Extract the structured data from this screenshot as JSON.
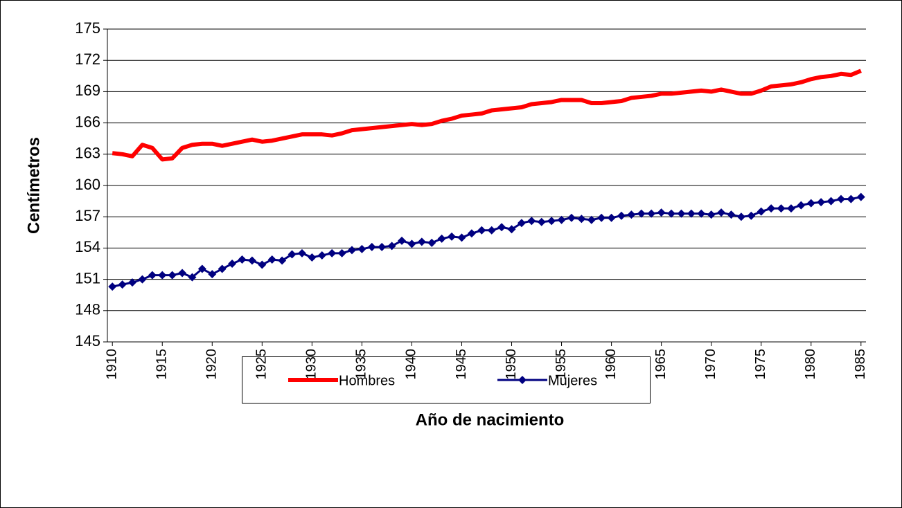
{
  "chart_data": {
    "type": "line",
    "x_label": "Año de nacimiento",
    "y_label": "Centímetros",
    "categories": [
      "1910",
      null,
      null,
      null,
      null,
      "1915",
      null,
      null,
      null,
      null,
      "1920",
      null,
      null,
      null,
      null,
      "1925",
      null,
      null,
      null,
      null,
      "1930",
      null,
      null,
      null,
      null,
      "1935",
      null,
      null,
      null,
      null,
      "1940",
      null,
      null,
      null,
      null,
      "1945",
      null,
      null,
      null,
      null,
      "1950",
      null,
      null,
      null,
      null,
      "1955",
      null,
      null,
      null,
      null,
      "1960",
      null,
      null,
      null,
      null,
      "1965",
      null,
      null,
      null,
      null,
      "1970",
      null,
      null,
      null,
      null,
      "1975",
      null,
      null,
      null,
      null,
      "1980",
      null,
      null,
      null,
      null,
      "1985"
    ],
    "series": [
      {
        "name": "Hombres",
        "color": "#ff0000",
        "values": [
          163.1,
          163.0,
          162.8,
          163.9,
          163.6,
          162.5,
          162.6,
          163.6,
          163.9,
          164.0,
          164.0,
          163.8,
          164.0,
          164.2,
          164.4,
          164.2,
          164.3,
          164.5,
          164.7,
          164.9,
          164.9,
          164.9,
          164.8,
          165.0,
          165.3,
          165.4,
          165.5,
          165.6,
          165.7,
          165.8,
          165.9,
          165.8,
          165.9,
          166.2,
          166.4,
          166.7,
          166.8,
          166.9,
          167.2,
          167.3,
          167.4,
          167.5,
          167.8,
          167.9,
          168.0,
          168.2,
          168.2,
          168.2,
          167.9,
          167.9,
          168.0,
          168.1,
          168.4,
          168.5,
          168.6,
          168.8,
          168.8,
          168.9,
          169.0,
          169.1,
          169.0,
          169.2,
          169.0,
          168.8,
          168.8,
          169.1,
          169.5,
          169.6,
          169.7,
          169.9,
          170.2,
          170.4,
          170.5,
          170.7,
          170.6,
          171.0
        ]
      },
      {
        "name": "Mujeres",
        "color": "#000080",
        "marker": "diamond",
        "values": [
          150.3,
          150.5,
          150.7,
          151.0,
          151.4,
          151.4,
          151.4,
          151.6,
          151.2,
          152.0,
          151.5,
          152.0,
          152.5,
          152.9,
          152.8,
          152.4,
          152.9,
          152.8,
          153.4,
          153.5,
          153.1,
          153.3,
          153.5,
          153.5,
          153.8,
          153.9,
          154.1,
          154.1,
          154.2,
          154.7,
          154.4,
          154.6,
          154.5,
          154.9,
          155.1,
          155.0,
          155.4,
          155.7,
          155.7,
          156.0,
          155.8,
          156.4,
          156.6,
          156.5,
          156.6,
          156.7,
          156.9,
          156.8,
          156.7,
          156.9,
          156.9,
          157.1,
          157.2,
          157.3,
          157.3,
          157.4,
          157.3,
          157.3,
          157.3,
          157.3,
          157.2,
          157.4,
          157.2,
          157.0,
          157.1,
          157.5,
          157.8,
          157.8,
          157.8,
          158.1,
          158.3,
          158.4,
          158.5,
          158.7,
          158.7,
          158.9
        ]
      }
    ],
    "ylim": [
      145,
      175
    ],
    "yticks": [
      145,
      148,
      151,
      154,
      157,
      160,
      163,
      166,
      169,
      172,
      175
    ],
    "grid": true,
    "legend": "bottom"
  }
}
